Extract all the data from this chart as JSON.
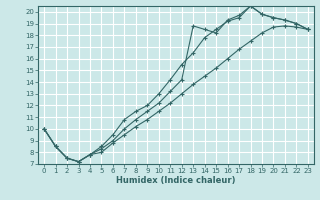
{
  "xlabel": "Humidex (Indice chaleur)",
  "ylabel": "",
  "bg_color": "#cce8e8",
  "grid_color": "#ffffff",
  "line_color": "#336666",
  "xlim": [
    -0.5,
    23.5
  ],
  "ylim": [
    7,
    20.5
  ],
  "xticks": [
    0,
    1,
    2,
    3,
    4,
    5,
    6,
    7,
    8,
    9,
    10,
    11,
    12,
    13,
    14,
    15,
    16,
    17,
    18,
    19,
    20,
    21,
    22,
    23
  ],
  "yticks": [
    7,
    8,
    9,
    10,
    11,
    12,
    13,
    14,
    15,
    16,
    17,
    18,
    19,
    20
  ],
  "line1_x": [
    0,
    1,
    2,
    3,
    4,
    5,
    6,
    7,
    8,
    9,
    10,
    11,
    12,
    13,
    14,
    15,
    16,
    17,
    18,
    19,
    20,
    21,
    22,
    23
  ],
  "line1_y": [
    10,
    8.5,
    7.5,
    7.2,
    7.8,
    8.5,
    9.5,
    10.8,
    11.5,
    12.0,
    13.0,
    14.2,
    15.5,
    16.5,
    17.8,
    18.5,
    19.2,
    19.5,
    20.5,
    19.8,
    19.5,
    19.3,
    19.0,
    18.5
  ],
  "line2_x": [
    0,
    1,
    2,
    3,
    4,
    5,
    6,
    7,
    8,
    9,
    10,
    11,
    12,
    13,
    14,
    15,
    16,
    17,
    18,
    19,
    20,
    21,
    22,
    23
  ],
  "line2_y": [
    10,
    8.5,
    7.5,
    7.2,
    7.8,
    8.3,
    9.0,
    10.0,
    10.8,
    11.5,
    12.2,
    13.2,
    14.2,
    18.8,
    18.5,
    18.2,
    19.3,
    19.7,
    20.5,
    19.8,
    19.5,
    19.3,
    19.0,
    18.5
  ],
  "line3_x": [
    0,
    1,
    2,
    3,
    4,
    5,
    6,
    7,
    8,
    9,
    10,
    11,
    12,
    13,
    14,
    15,
    16,
    17,
    18,
    19,
    20,
    21,
    22,
    23
  ],
  "line3_y": [
    10,
    8.5,
    7.5,
    7.2,
    7.8,
    8.0,
    8.8,
    9.5,
    10.2,
    10.8,
    11.5,
    12.2,
    13.0,
    13.8,
    14.5,
    15.2,
    16.0,
    16.8,
    17.5,
    18.2,
    18.7,
    18.8,
    18.7,
    18.5
  ]
}
